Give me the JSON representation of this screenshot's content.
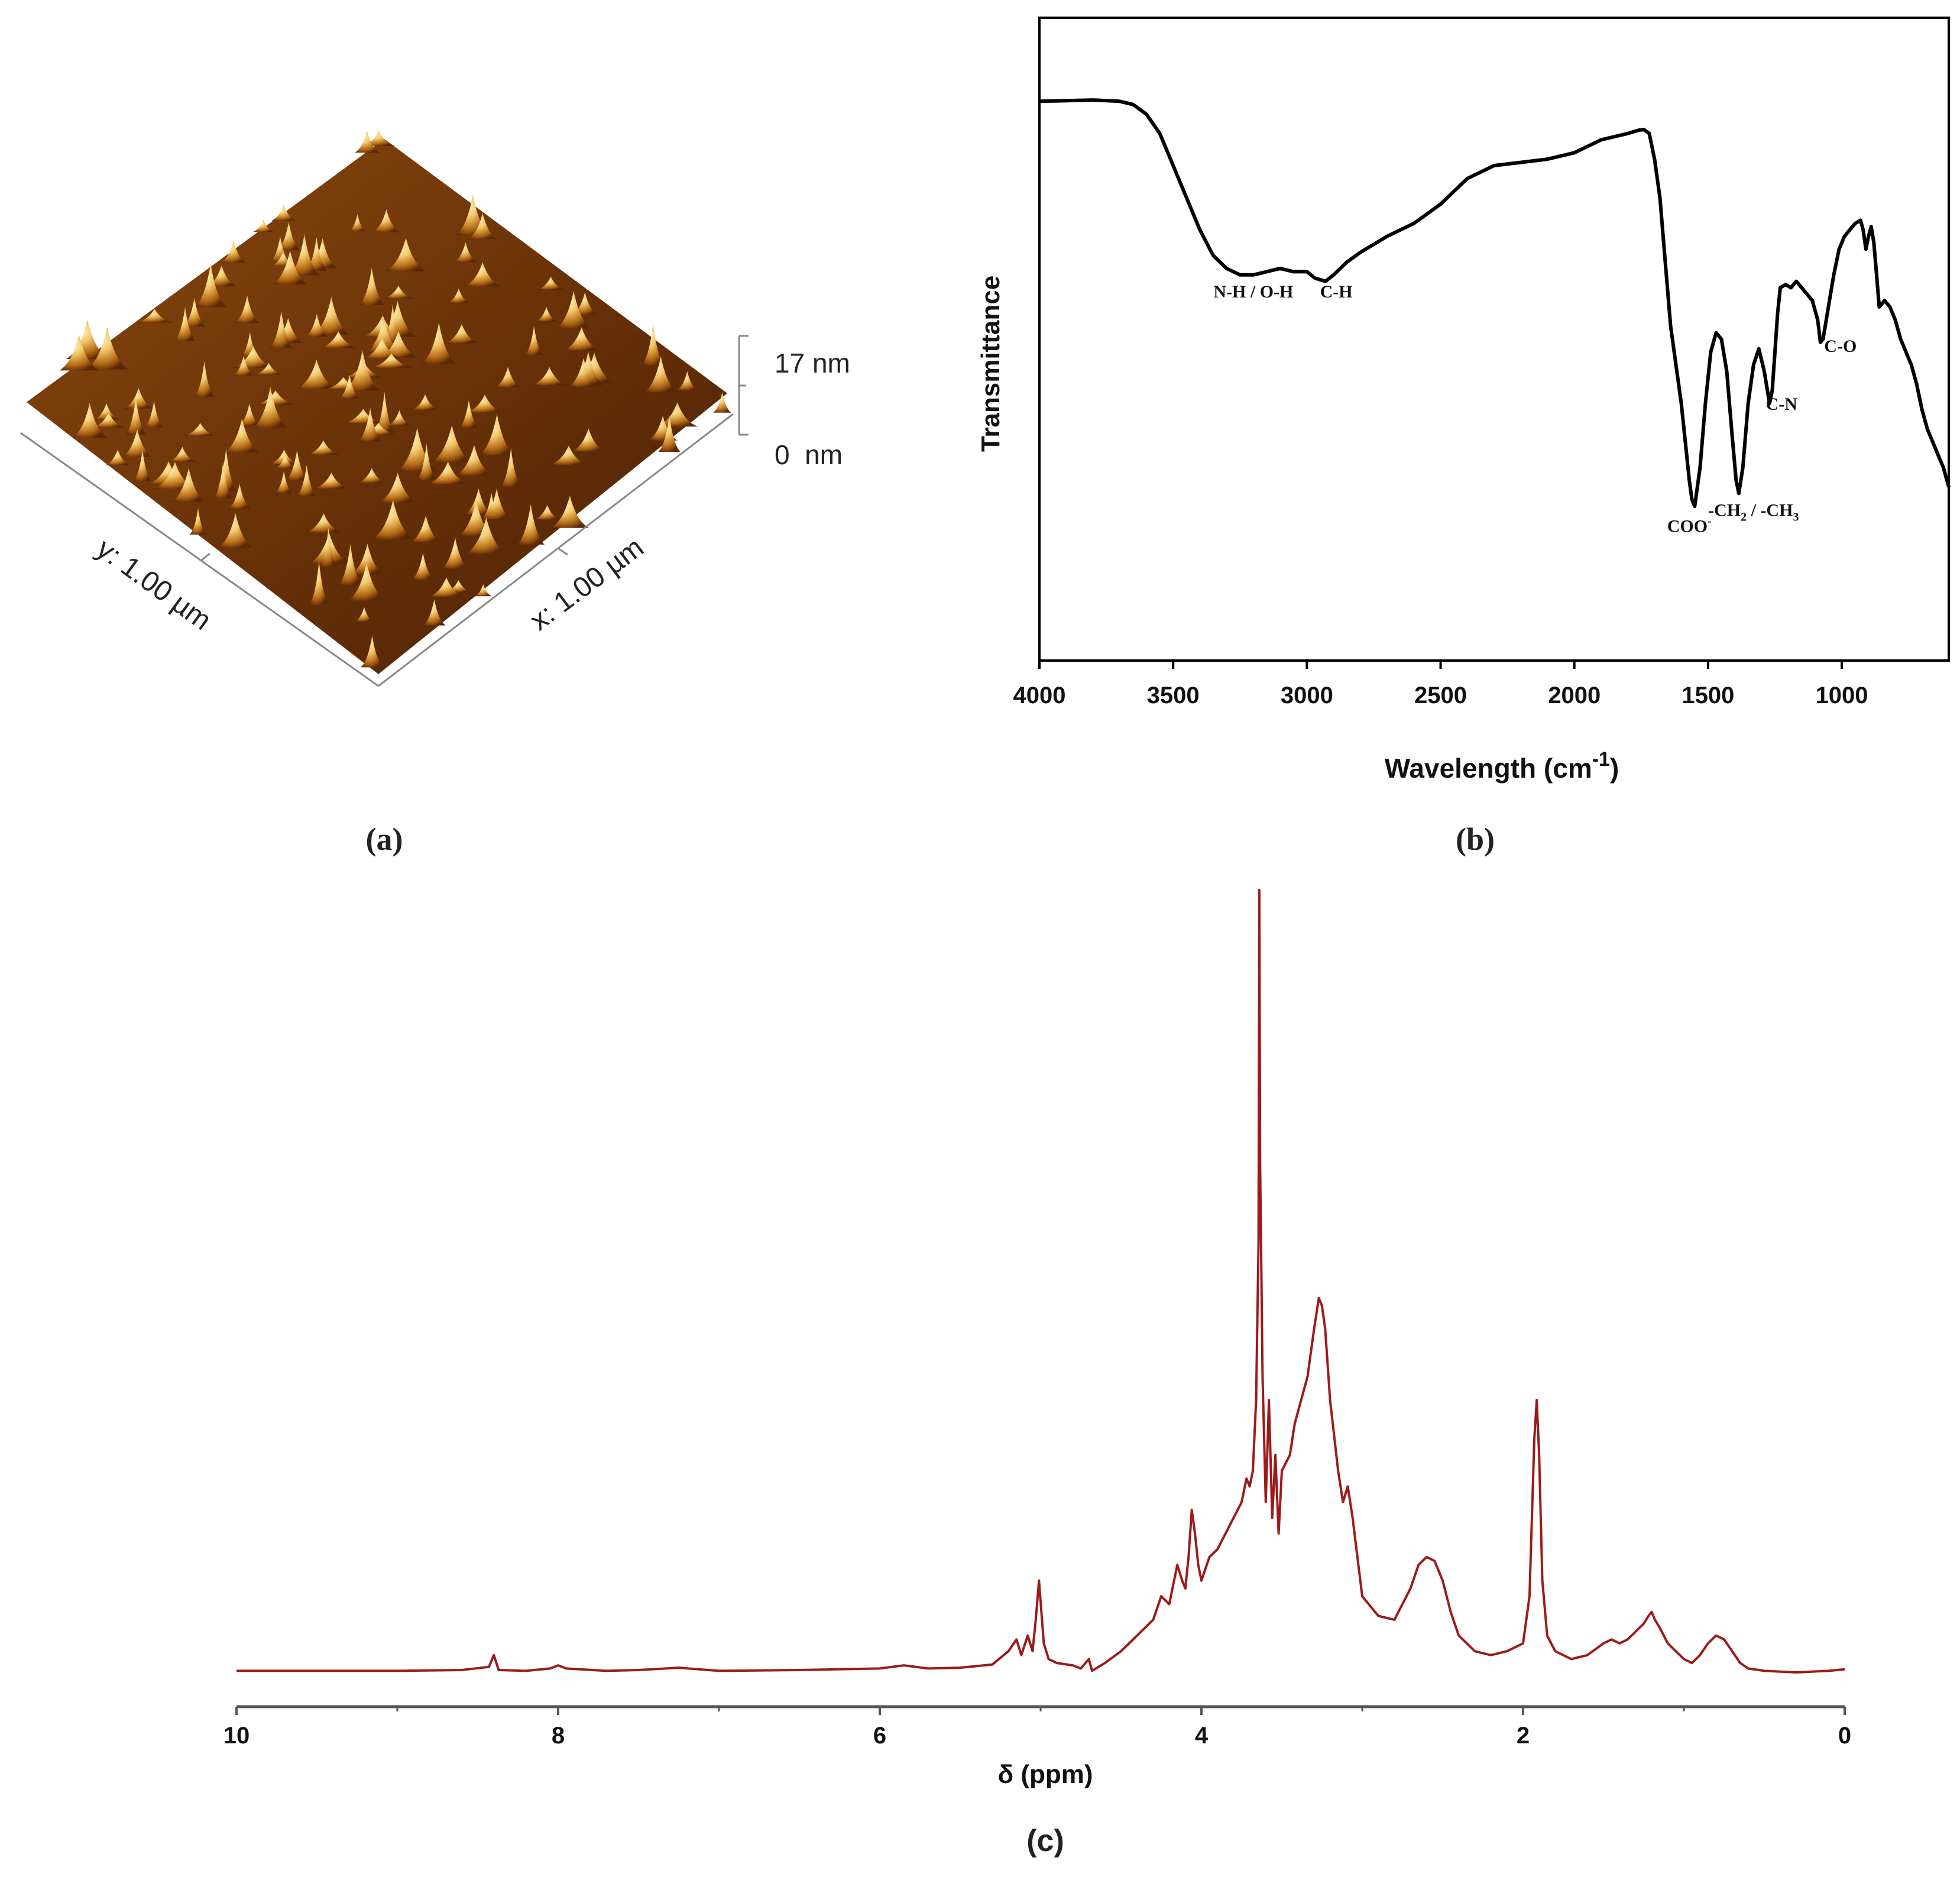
{
  "panels": {
    "a": {
      "caption": "(a)",
      "z_max_label": "17 nm",
      "z_min_label": "0  nm",
      "y_axis_label": "y: 1.00 µm",
      "x_axis_label": "x: 1.00 µm",
      "colors": {
        "dark": "#3a1503",
        "mid": "#a3560e",
        "light": "#f6d985",
        "peak": "#fff3c8"
      }
    },
    "b": {
      "caption": "(b)"
    },
    "c": {
      "caption": "(c)"
    }
  },
  "chart_data": [
    {
      "id": "b",
      "type": "line",
      "xlabel": "Wavelength (cm",
      "xlabel_superscript": "-1",
      "xlabel_suffix": ")",
      "ylabel": "Transmittance",
      "xlim": [
        4000,
        600
      ],
      "ylim": [
        0,
        100
      ],
      "xticks": [
        4000,
        3500,
        3000,
        2500,
        2000,
        1500,
        1000
      ],
      "line_color": "#000000",
      "x": [
        4000,
        3800,
        3700,
        3650,
        3600,
        3550,
        3500,
        3450,
        3400,
        3350,
        3300,
        3250,
        3200,
        3150,
        3100,
        3050,
        3000,
        2970,
        2930,
        2900,
        2850,
        2800,
        2700,
        2600,
        2500,
        2450,
        2400,
        2350,
        2300,
        2200,
        2100,
        2000,
        1950,
        1900,
        1850,
        1800,
        1760,
        1740,
        1720,
        1700,
        1680,
        1660,
        1640,
        1620,
        1600,
        1580,
        1570,
        1560,
        1550,
        1530,
        1510,
        1490,
        1470,
        1450,
        1430,
        1410,
        1395,
        1385,
        1370,
        1350,
        1330,
        1310,
        1290,
        1270,
        1260,
        1250,
        1240,
        1230,
        1210,
        1190,
        1170,
        1150,
        1130,
        1110,
        1090,
        1080,
        1070,
        1050,
        1030,
        1010,
        990,
        970,
        950,
        930,
        920,
        910,
        900,
        890,
        880,
        870,
        860,
        840,
        820,
        800,
        780,
        760,
        740,
        720,
        700,
        680,
        660,
        640,
        620,
        600
      ],
      "y": [
        87,
        87.2,
        87,
        86.5,
        85,
        82,
        77,
        72,
        67,
        63,
        61,
        60,
        60,
        60.5,
        61,
        60.5,
        60.5,
        59.5,
        59,
        60,
        62,
        63.5,
        66,
        68,
        71,
        73,
        75,
        76,
        77,
        77.5,
        78,
        79,
        80,
        81,
        81.5,
        82,
        82.5,
        82.6,
        82,
        78,
        72,
        62,
        52,
        46,
        40,
        32,
        28,
        25,
        24,
        30,
        40,
        48,
        51,
        50,
        45,
        35,
        28,
        26,
        30,
        40,
        46,
        48.5,
        45,
        40,
        42,
        48,
        54,
        58,
        58.5,
        58,
        59,
        58,
        57,
        56,
        53,
        49.5,
        50,
        55,
        60,
        64,
        66,
        67,
        68,
        68.5,
        67,
        64,
        66,
        67.5,
        65,
        60,
        55,
        56,
        55,
        53,
        50,
        48,
        46,
        43,
        39,
        36,
        34,
        32,
        30,
        27
      ]
    },
    {
      "id": "c",
      "type": "line",
      "xlabel": "δ (ppm)",
      "ylabel": "",
      "xlim": [
        10,
        0
      ],
      "ylim": [
        0,
        100
      ],
      "xticks": [
        10,
        8,
        6,
        4,
        2,
        0
      ],
      "line_color": "#9b1b1b",
      "x": [
        10,
        9.5,
        9,
        8.6,
        8.43,
        8.4,
        8.37,
        8.2,
        8.05,
        8.0,
        7.95,
        7.7,
        7.5,
        7.25,
        7.0,
        6.5,
        6.0,
        5.85,
        5.7,
        5.5,
        5.3,
        5.2,
        5.15,
        5.12,
        5.08,
        5.05,
        5.03,
        5.01,
        4.98,
        4.95,
        4.9,
        4.8,
        4.75,
        4.7,
        4.68,
        4.6,
        4.5,
        4.4,
        4.3,
        4.25,
        4.2,
        4.15,
        4.12,
        4.1,
        4.08,
        4.06,
        4.04,
        4.02,
        4.0,
        3.95,
        3.9,
        3.85,
        3.8,
        3.75,
        3.72,
        3.7,
        3.68,
        3.66,
        3.645,
        3.64,
        3.635,
        3.62,
        3.6,
        3.58,
        3.56,
        3.54,
        3.52,
        3.5,
        3.45,
        3.42,
        3.38,
        3.34,
        3.3,
        3.27,
        3.25,
        3.23,
        3.2,
        3.15,
        3.12,
        3.09,
        3.06,
        3.0,
        2.9,
        2.8,
        2.7,
        2.65,
        2.6,
        2.55,
        2.5,
        2.45,
        2.4,
        2.3,
        2.2,
        2.1,
        2.0,
        1.96,
        1.93,
        1.915,
        1.9,
        1.88,
        1.85,
        1.8,
        1.7,
        1.6,
        1.5,
        1.45,
        1.4,
        1.35,
        1.3,
        1.25,
        1.22,
        1.2,
        1.18,
        1.15,
        1.1,
        1.0,
        0.95,
        0.9,
        0.85,
        0.8,
        0.75,
        0.7,
        0.65,
        0.6,
        0.5,
        0.3,
        0.1,
        0
      ],
      "y": [
        0.5,
        0.5,
        0.5,
        0.6,
        1.0,
        2.5,
        0.6,
        0.5,
        0.8,
        1.2,
        0.8,
        0.5,
        0.6,
        0.9,
        0.5,
        0.6,
        0.8,
        1.2,
        0.8,
        0.9,
        1.3,
        3.0,
        4.5,
        2.5,
        5.0,
        3.0,
        7.0,
        12.0,
        4.0,
        2.0,
        1.5,
        1.2,
        0.8,
        2.0,
        0.5,
        1.5,
        3.0,
        5.0,
        7.0,
        10.0,
        9.0,
        14.0,
        12.0,
        11.0,
        15.0,
        21.0,
        18.0,
        14.0,
        12.0,
        15.0,
        16.0,
        18.0,
        20.0,
        22.0,
        25.0,
        24.0,
        26.0,
        35.0,
        55.0,
        100.0,
        65.0,
        38.0,
        22.0,
        35.0,
        20.0,
        28.0,
        18.0,
        26.0,
        28.0,
        32.0,
        35.0,
        38.0,
        44.0,
        48.0,
        47.0,
        44.0,
        35.0,
        26.0,
        22.0,
        24.0,
        20.0,
        10.0,
        7.5,
        7.0,
        11.0,
        14.0,
        15.0,
        14.5,
        12.0,
        8.0,
        5.0,
        3.0,
        2.5,
        3.0,
        4.0,
        10.0,
        30.0,
        35.0,
        28.0,
        12.0,
        5.0,
        3.0,
        2.0,
        2.5,
        4.0,
        4.5,
        4.0,
        4.5,
        5.5,
        6.5,
        7.5,
        8.0,
        7.0,
        6.0,
        4.0,
        2.0,
        1.5,
        2.5,
        4.0,
        5.0,
        4.5,
        3.0,
        1.5,
        0.8,
        0.5,
        0.3,
        0.5,
        0.7
      ]
    }
  ],
  "annotations_b": [
    {
      "text": "N-H / O-H",
      "x": 3200,
      "y": 56.5
    },
    {
      "text": "C-H",
      "x": 2890,
      "y": 56.5
    },
    {
      "text": "COO",
      "sup": "-",
      "x": 1570,
      "y": 20
    },
    {
      "text": "-CH",
      "sub1": "2",
      "mid": " / -CH",
      "sub2": "3",
      "x": 1330,
      "y": 22.5
    },
    {
      "text": "C-N",
      "x": 1225,
      "y": 39
    },
    {
      "text": "C-O",
      "x": 1005,
      "y": 48
    }
  ]
}
